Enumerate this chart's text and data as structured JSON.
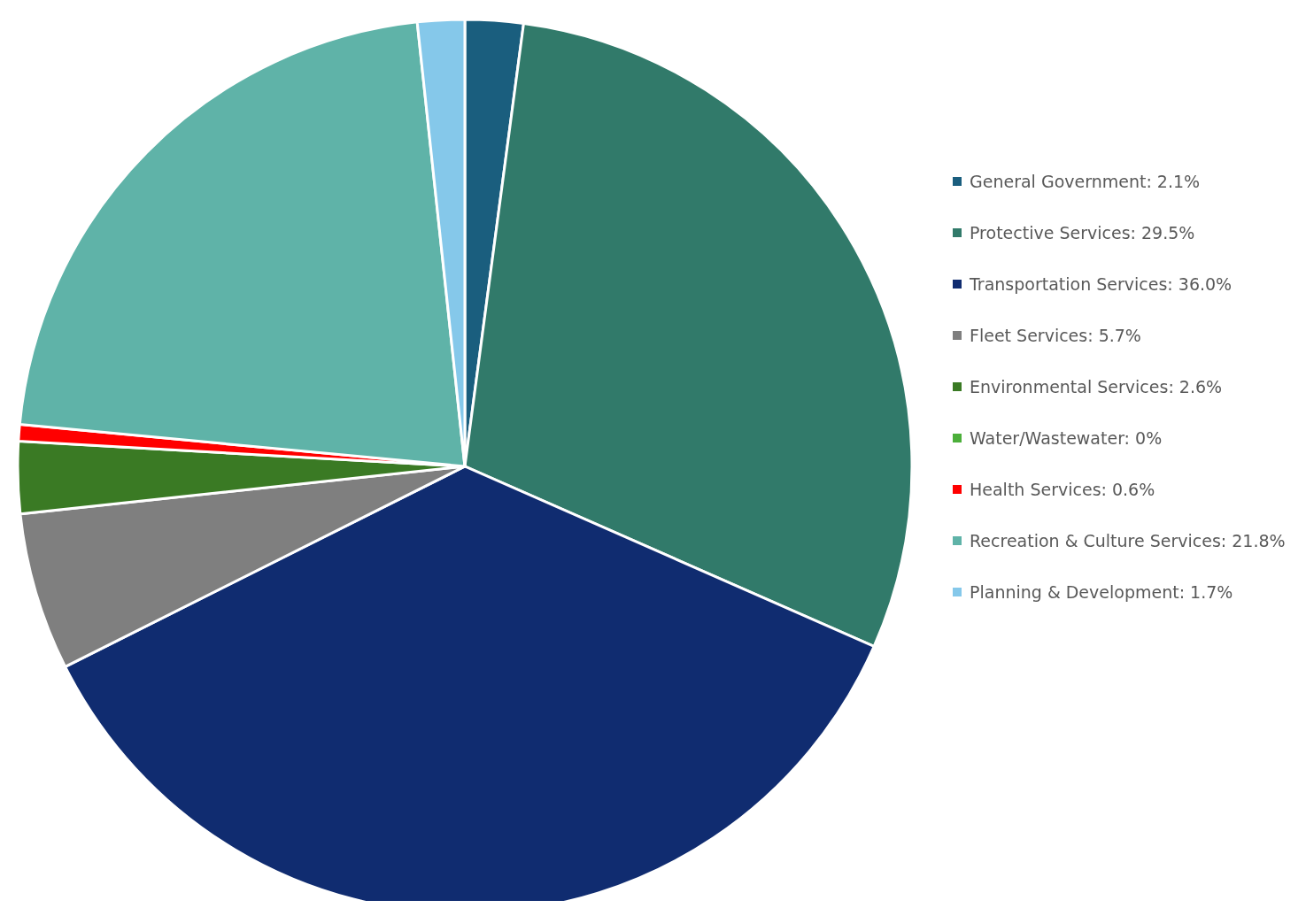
{
  "chart_data": {
    "type": "pie",
    "categories": [
      "General Government",
      "Protective Services",
      "Transportation Services",
      "Fleet Services",
      "Environmental Services",
      "Water/Wastewater",
      "Health Services",
      "Recreation & Culture Services",
      "Planning & Development"
    ],
    "values": [
      2.1,
      29.5,
      36.0,
      5.7,
      2.6,
      0,
      0.6,
      21.8,
      1.7
    ],
    "value_labels": [
      "2.1%",
      "29.5%",
      "36.0%",
      "5.7%",
      "2.6%",
      "0%",
      "0.6%",
      "21.8%",
      "1.7%"
    ],
    "colors": [
      "#1a5e7e",
      "#317a6a",
      "#102c70",
      "#7f7f7f",
      "#3a7a24",
      "#4caf3a",
      "#ff0000",
      "#5fb3a8",
      "#85c8ea"
    ],
    "legend": "right"
  }
}
